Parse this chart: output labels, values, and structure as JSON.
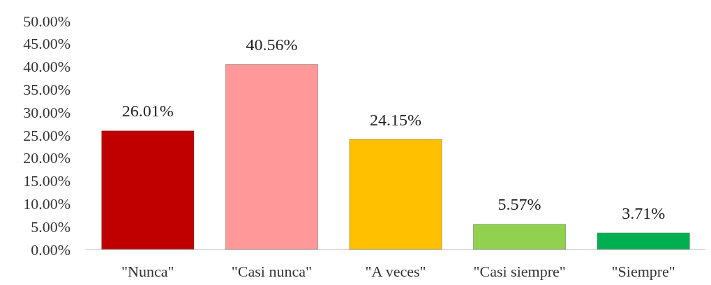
{
  "chart_data": {
    "type": "bar",
    "categories": [
      "\"Nunca\"",
      "\"Casi nunca\"",
      "\"A veces\"",
      "\"Casi siempre\"",
      "\"Siempre\""
    ],
    "values": [
      26.01,
      40.56,
      24.15,
      5.57,
      3.71
    ],
    "colors": [
      "#c00000",
      "#ff9999",
      "#ffc000",
      "#92d050",
      "#00b050"
    ],
    "value_labels": [
      "26.01%",
      "40.56%",
      "24.15%",
      "5.57%",
      "3.71%"
    ],
    "ylim": [
      0,
      50
    ],
    "yticks": [
      {
        "value": 0,
        "label": "0.00%"
      },
      {
        "value": 5,
        "label": "5.00%"
      },
      {
        "value": 10,
        "label": "10.00%"
      },
      {
        "value": 15,
        "label": "15.00%"
      },
      {
        "value": 20,
        "label": "20.00%"
      },
      {
        "value": 25,
        "label": "25.00%"
      },
      {
        "value": 30,
        "label": "30.00%"
      },
      {
        "value": 35,
        "label": "35.00%"
      },
      {
        "value": 40,
        "label": "40.00%"
      },
      {
        "value": 45,
        "label": "45.00%"
      },
      {
        "value": 50,
        "label": "50.00%"
      }
    ],
    "grid": false
  }
}
